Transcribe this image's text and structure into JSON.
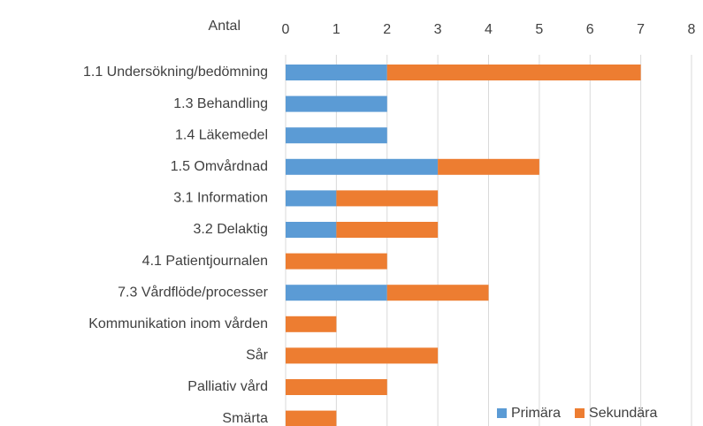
{
  "chart_data": {
    "type": "bar",
    "orientation": "horizontal",
    "stacked": true,
    "x_label": "Antal",
    "categories": [
      "1.1 Undersökning/bedömning",
      "1.3 Behandling",
      "1.4 Läkemedel",
      "1.5 Omvårdnad",
      "3.1 Information",
      "3.2 Delaktig",
      "4.1 Patientjournalen",
      "7.3 Vårdflöde/processer",
      "Kommunikation inom vården",
      "Sår",
      "Palliativ vård",
      "Smärta"
    ],
    "series": [
      {
        "name": "Primära",
        "color": "#5b9bd5",
        "values": [
          2,
          2,
          2,
          3,
          1,
          1,
          0,
          2,
          0,
          0,
          0,
          0
        ]
      },
      {
        "name": "Sekundära",
        "color": "#ed7d31",
        "values": [
          5,
          0,
          0,
          2,
          2,
          2,
          2,
          2,
          1,
          3,
          2,
          1
        ]
      }
    ],
    "xlim": [
      0,
      8
    ],
    "xticks": [
      0,
      1,
      2,
      3,
      4,
      5,
      6,
      7,
      8
    ],
    "grid": true,
    "legend": "bottom-right"
  }
}
